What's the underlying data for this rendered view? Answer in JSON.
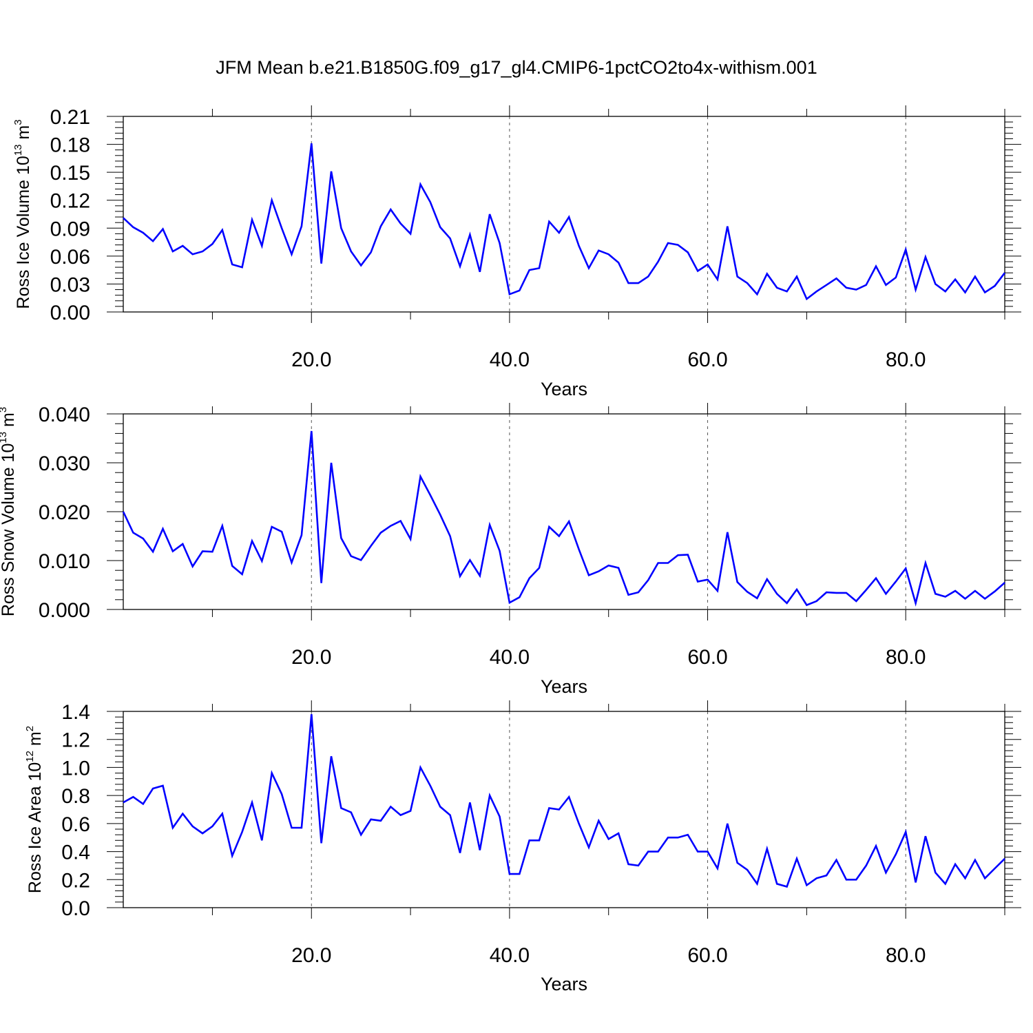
{
  "title": "JFM Mean b.e21.B1850G.f09_g17_gl4.CMIP6-1pctCO2to4x-withism.001",
  "line_color": "#0000ff",
  "chart_data": [
    {
      "type": "line",
      "ylabel": {
        "text": "Ross Ice Volume 10",
        "sup1": "13",
        "mid": " m",
        "sup2": "3"
      },
      "xlabel": "Years",
      "xlim": [
        1,
        90
      ],
      "ylim": [
        0,
        0.21
      ],
      "x_ticks": [
        "20.0",
        "40.0",
        "60.0",
        "80.0"
      ],
      "y_ticks": [
        "0.00",
        "0.03",
        "0.06",
        "0.09",
        "0.12",
        "0.15",
        "0.18",
        "0.21"
      ],
      "grid": "vertical dashed at major x ticks",
      "series": [
        {
          "x_start": 1,
          "values": [
            0.101,
            0.091,
            0.085,
            0.076,
            0.089,
            0.065,
            0.071,
            0.062,
            0.065,
            0.073,
            0.088,
            0.051,
            0.048,
            0.099,
            0.071,
            0.12,
            0.09,
            0.062,
            0.092,
            0.181,
            0.052,
            0.151,
            0.09,
            0.065,
            0.05,
            0.064,
            0.092,
            0.11,
            0.095,
            0.084,
            0.137,
            0.118,
            0.091,
            0.079,
            0.049,
            0.083,
            0.043,
            0.105,
            0.074,
            0.019,
            0.023,
            0.045,
            0.047,
            0.097,
            0.085,
            0.102,
            0.071,
            0.047,
            0.066,
            0.062,
            0.053,
            0.031,
            0.031,
            0.038,
            0.054,
            0.074,
            0.072,
            0.064,
            0.044,
            0.051,
            0.035,
            0.092,
            0.038,
            0.031,
            0.019,
            0.041,
            0.026,
            0.022,
            0.038,
            0.014,
            0.022,
            0.029,
            0.036,
            0.026,
            0.024,
            0.029,
            0.049,
            0.029,
            0.037,
            0.067,
            0.024,
            0.059,
            0.03,
            0.022,
            0.035,
            0.021,
            0.038,
            0.021,
            0.028,
            0.042
          ]
        }
      ]
    },
    {
      "type": "line",
      "ylabel": {
        "text": "Ross Snow Volume 10",
        "sup1": "13",
        "mid": " m",
        "sup2": "3"
      },
      "xlabel": "Years",
      "xlim": [
        1,
        90
      ],
      "ylim": [
        0,
        0.04
      ],
      "x_ticks": [
        "20.0",
        "40.0",
        "60.0",
        "80.0"
      ],
      "y_ticks": [
        "0.000",
        "0.010",
        "0.020",
        "0.030",
        "0.040"
      ],
      "grid": "vertical dashed at major x ticks",
      "series": [
        {
          "x_start": 1,
          "values": [
            0.02,
            0.0157,
            0.0145,
            0.0118,
            0.0165,
            0.0119,
            0.0134,
            0.0088,
            0.0119,
            0.0118,
            0.0171,
            0.0089,
            0.0072,
            0.014,
            0.0099,
            0.0169,
            0.0159,
            0.0096,
            0.0152,
            0.0365,
            0.0054,
            0.03,
            0.0146,
            0.0109,
            0.0101,
            0.013,
            0.0157,
            0.0171,
            0.0181,
            0.0144,
            0.0272,
            0.0234,
            0.0194,
            0.015,
            0.0068,
            0.0101,
            0.0069,
            0.0173,
            0.012,
            0.0014,
            0.0025,
            0.0064,
            0.0085,
            0.0169,
            0.015,
            0.018,
            0.0123,
            0.007,
            0.0078,
            0.009,
            0.0085,
            0.003,
            0.0035,
            0.006,
            0.0095,
            0.0095,
            0.0111,
            0.0112,
            0.0057,
            0.0061,
            0.0038,
            0.0158,
            0.0056,
            0.0036,
            0.0023,
            0.0062,
            0.0032,
            0.0013,
            0.0041,
            0.0009,
            0.0017,
            0.0035,
            0.0034,
            0.0034,
            0.0017,
            0.004,
            0.0064,
            0.0032,
            0.0057,
            0.0084,
            0.0013,
            0.0095,
            0.0032,
            0.0026,
            0.0038,
            0.0022,
            0.0038,
            0.0022,
            0.0037,
            0.0055
          ]
        }
      ]
    },
    {
      "type": "line",
      "ylabel": {
        "text": "Ross Ice Area 10",
        "sup1": "12",
        "mid": " m",
        "sup2": "2"
      },
      "xlabel": "Years",
      "xlim": [
        1,
        90
      ],
      "ylim": [
        0,
        1.4
      ],
      "x_ticks": [
        "20.0",
        "40.0",
        "60.0",
        "80.0"
      ],
      "y_ticks": [
        "0.0",
        "0.2",
        "0.4",
        "0.6",
        "0.8",
        "1.0",
        "1.2",
        "1.4"
      ],
      "grid": "vertical dashed at major x ticks",
      "series": [
        {
          "x_start": 1,
          "values": [
            0.75,
            0.79,
            0.74,
            0.85,
            0.87,
            0.57,
            0.67,
            0.58,
            0.53,
            0.58,
            0.67,
            0.37,
            0.54,
            0.75,
            0.48,
            0.96,
            0.81,
            0.57,
            0.57,
            1.38,
            0.46,
            1.08,
            0.71,
            0.68,
            0.52,
            0.63,
            0.62,
            0.72,
            0.66,
            0.69,
            1.0,
            0.87,
            0.72,
            0.66,
            0.39,
            0.75,
            0.41,
            0.8,
            0.65,
            0.24,
            0.24,
            0.48,
            0.48,
            0.71,
            0.7,
            0.79,
            0.6,
            0.43,
            0.62,
            0.49,
            0.53,
            0.31,
            0.3,
            0.4,
            0.4,
            0.5,
            0.5,
            0.52,
            0.4,
            0.4,
            0.28,
            0.6,
            0.32,
            0.27,
            0.17,
            0.42,
            0.17,
            0.15,
            0.35,
            0.16,
            0.21,
            0.23,
            0.34,
            0.2,
            0.2,
            0.3,
            0.44,
            0.25,
            0.38,
            0.54,
            0.18,
            0.51,
            0.25,
            0.17,
            0.31,
            0.21,
            0.34,
            0.21,
            0.28,
            0.35
          ]
        }
      ]
    }
  ]
}
